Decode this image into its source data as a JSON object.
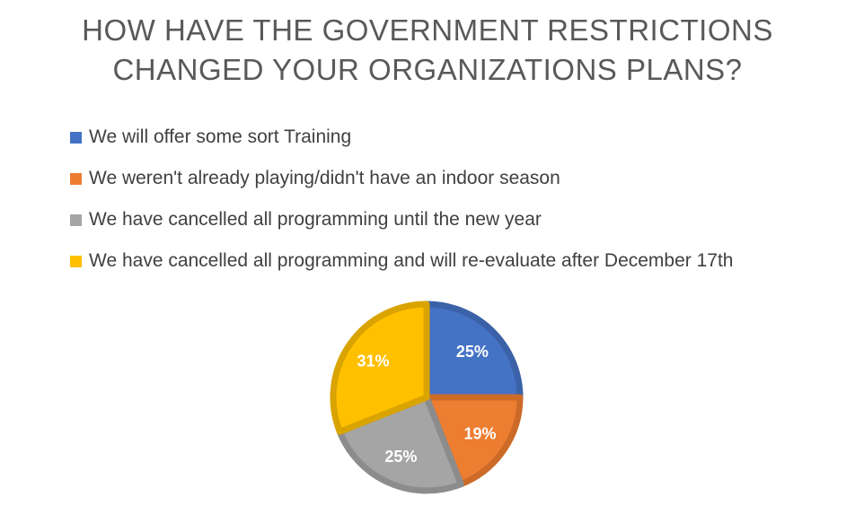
{
  "chart_data": {
    "type": "pie",
    "title_lines": [
      "HOW HAVE THE GOVERNMENT RESTRICTIONS",
      "CHANGED YOUR ORGANIZATIONS PLANS?"
    ],
    "series": [
      {
        "name": "We will offer some sort Training",
        "value": 25,
        "label": "25%",
        "color": "#4472C4",
        "border": "#3B62A8"
      },
      {
        "name": "We weren't already playing/didn't have an indoor season",
        "value": 19,
        "label": "19%",
        "color": "#ED7D31",
        "border": "#CC6A28"
      },
      {
        "name": "We have cancelled all programming until the new year",
        "value": 25,
        "label": "25%",
        "color": "#A5A5A5",
        "border": "#8C8C8C"
      },
      {
        "name": "We have cancelled all programming and will re-evaluate after December 17th",
        "value": 31,
        "label": "31%",
        "color": "#FFC000",
        "border": "#D9A300"
      }
    ],
    "legend_position": "top",
    "start_angle_deg": 0,
    "direction": "clockwise"
  }
}
